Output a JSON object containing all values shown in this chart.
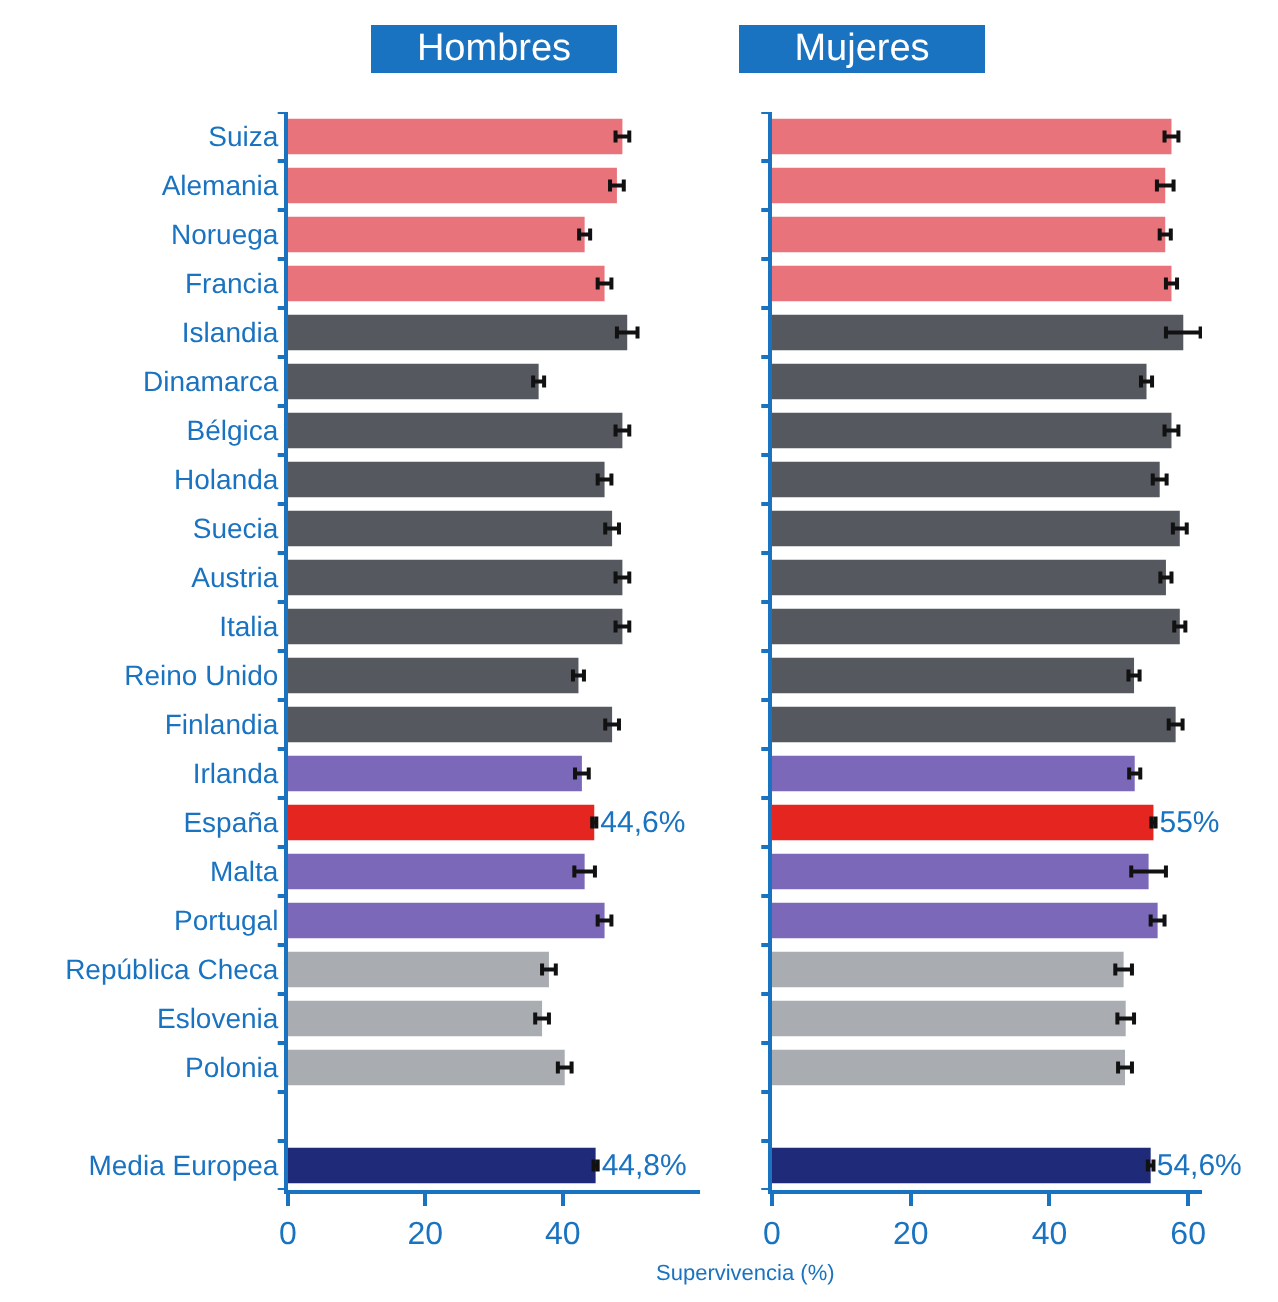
{
  "chart_data": [
    {
      "type": "bar",
      "orientation": "horizontal",
      "title": "Hombres",
      "xlabel": "Supervivencia (%)",
      "categories": [
        "Suiza",
        "Alemania",
        "Noruega",
        "Francia",
        "Islandia",
        "Dinamarca",
        "Bélgica",
        "Holanda",
        "Suecia",
        "Austria",
        "Italia",
        "Reino Unido",
        "Finlandia",
        "Irlanda",
        "España",
        "Malta",
        "Portugal",
        "República Checa",
        "Eslovenia",
        "Polonia",
        null,
        "Media Europea"
      ],
      "values": [
        48.7,
        47.9,
        43.2,
        46.1,
        49.4,
        36.5,
        48.7,
        46.1,
        47.2,
        48.7,
        48.7,
        42.3,
        47.2,
        42.8,
        44.6,
        43.2,
        46.1,
        38.0,
        37.0,
        40.3,
        null,
        44.8
      ],
      "errors": [
        1,
        1,
        0.8,
        1,
        1.5,
        0.8,
        1,
        1,
        1,
        1,
        1,
        0.8,
        1,
        1,
        0.3,
        1.5,
        1,
        1,
        1,
        1,
        null,
        0.3
      ],
      "colors": [
        "#e8737a",
        "#e8737a",
        "#e8737a",
        "#e8737a",
        "#55585e",
        "#55585e",
        "#55585e",
        "#55585e",
        "#55585e",
        "#55585e",
        "#55585e",
        "#55585e",
        "#55585e",
        "#7b68b8",
        "#e52520",
        "#7b68b8",
        "#7b68b8",
        "#a9acb0",
        "#a9acb0",
        "#a9acb0",
        null,
        "#1f2a78"
      ],
      "value_labels": [
        null,
        null,
        null,
        null,
        null,
        null,
        null,
        null,
        null,
        null,
        null,
        null,
        null,
        null,
        "44,6%",
        null,
        null,
        null,
        null,
        null,
        null,
        "44,8%"
      ],
      "xlim": [
        0,
        60
      ],
      "xticks": [
        0,
        20,
        40
      ]
    },
    {
      "type": "bar",
      "orientation": "horizontal",
      "title": "Mujeres",
      "categories": [
        null,
        null,
        null,
        null,
        null,
        null,
        null,
        null,
        null,
        null,
        null,
        null,
        null,
        null,
        null,
        null,
        null,
        null,
        null,
        null,
        null,
        null
      ],
      "values": [
        57.6,
        56.7,
        56.7,
        57.6,
        59.3,
        54.0,
        57.6,
        55.9,
        58.8,
        56.8,
        58.8,
        52.2,
        58.2,
        52.3,
        55,
        54.3,
        55.6,
        50.7,
        51.0,
        50.9,
        null,
        54.6
      ],
      "errors": [
        1,
        1.2,
        0.8,
        0.8,
        2.5,
        0.8,
        1,
        1,
        1,
        0.8,
        0.8,
        0.8,
        1,
        0.8,
        0.3,
        2.5,
        1,
        1.2,
        1.2,
        1,
        null,
        0.4
      ],
      "colors": [
        "#e8737a",
        "#e8737a",
        "#e8737a",
        "#e8737a",
        "#55585e",
        "#55585e",
        "#55585e",
        "#55585e",
        "#55585e",
        "#55585e",
        "#55585e",
        "#55585e",
        "#55585e",
        "#7b68b8",
        "#e52520",
        "#7b68b8",
        "#7b68b8",
        "#a9acb0",
        "#a9acb0",
        "#a9acb0",
        null,
        "#1f2a78"
      ],
      "value_labels": [
        null,
        null,
        null,
        null,
        null,
        null,
        null,
        null,
        null,
        null,
        null,
        null,
        null,
        null,
        "55%",
        null,
        null,
        null,
        null,
        null,
        null,
        "54,6%"
      ],
      "xlim": [
        0,
        62
      ],
      "xticks": [
        0,
        20,
        40,
        60
      ],
      "tick_labels": "x"
    }
  ]
}
